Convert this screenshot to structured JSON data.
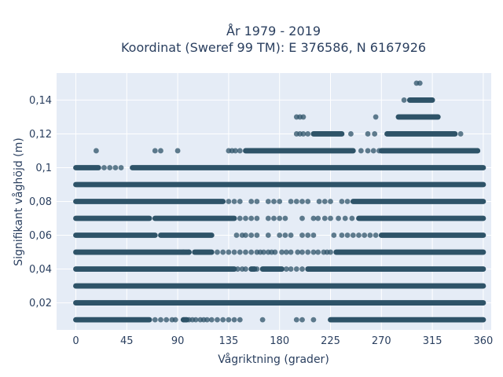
{
  "chart_data": {
    "type": "scatter",
    "title_line1": "År 1979 - 2019",
    "title_line2": "Koordinat (Sweref 99 TM): E 376586, N 6167926",
    "xlabel": "Vågriktning (grader)",
    "ylabel": "Signifikant våghöjd (m)",
    "xlim": [
      -17,
      367
    ],
    "ylim": [
      0.004,
      0.156
    ],
    "x_ticks": [
      {
        "value": 0,
        "label": "0"
      },
      {
        "value": 45,
        "label": "45"
      },
      {
        "value": 90,
        "label": "90"
      },
      {
        "value": 135,
        "label": "135"
      },
      {
        "value": 180,
        "label": "180"
      },
      {
        "value": 225,
        "label": "225"
      },
      {
        "value": 270,
        "label": "270"
      },
      {
        "value": 315,
        "label": "315"
      },
      {
        "value": 360,
        "label": "360"
      }
    ],
    "y_ticks": [
      {
        "value": 0.02,
        "label": "0,02"
      },
      {
        "value": 0.04,
        "label": "0,04"
      },
      {
        "value": 0.06,
        "label": "0,06"
      },
      {
        "value": 0.08,
        "label": "0,08"
      },
      {
        "value": 0.1,
        "label": "0,1"
      },
      {
        "value": 0.12,
        "label": "0,12"
      },
      {
        "value": 0.14,
        "label": "0,14"
      }
    ],
    "grid": true,
    "marker_color": "#2e5368",
    "plot_bg": "#e5ecf6",
    "rows": [
      {
        "y": 0.01,
        "segments": [
          [
            0,
            65
          ],
          [
            95,
            98
          ],
          [
            225,
            360
          ]
        ],
        "points": [
          70,
          75,
          80,
          85,
          88,
          100,
          103,
          106,
          110,
          113,
          116,
          120,
          125,
          130,
          135,
          140,
          145,
          165,
          195,
          200,
          210
        ]
      },
      {
        "y": 0.02,
        "segments": [
          [
            0,
            360
          ]
        ],
        "points": []
      },
      {
        "y": 0.03,
        "segments": [
          [
            0,
            360
          ]
        ],
        "points": []
      },
      {
        "y": 0.04,
        "segments": [
          [
            0,
            140
          ],
          [
            155,
            158
          ],
          [
            165,
            182
          ],
          [
            205,
            360
          ]
        ],
        "points": [
          143,
          147,
          150,
          160,
          186,
          190,
          195,
          200
        ]
      },
      {
        "y": 0.05,
        "segments": [
          [
            0,
            100
          ],
          [
            105,
            120
          ],
          [
            230,
            360
          ]
        ],
        "points": [
          95,
          100,
          125,
          130,
          135,
          140,
          145,
          150,
          155,
          160,
          163,
          166,
          170,
          173,
          176,
          182,
          186,
          190,
          196,
          200,
          205,
          210,
          214,
          219,
          222,
          225
        ]
      },
      {
        "y": 0.06,
        "segments": [
          [
            0,
            70
          ],
          [
            75,
            120
          ],
          [
            270,
            360
          ]
        ],
        "points": [
          142,
          147,
          150,
          155,
          160,
          170,
          180,
          185,
          190,
          200,
          205,
          210,
          228,
          235,
          240,
          245,
          250,
          255,
          260,
          265
        ]
      },
      {
        "y": 0.07,
        "segments": [
          [
            0,
            65
          ],
          [
            70,
            140
          ],
          [
            250,
            360
          ]
        ],
        "points": [
          145,
          150,
          155,
          160,
          170,
          175,
          180,
          185,
          200,
          210,
          214,
          220,
          225,
          232,
          238,
          244
        ]
      },
      {
        "y": 0.08,
        "segments": [
          [
            0,
            130
          ],
          [
            245,
            360
          ]
        ],
        "points": [
          135,
          140,
          145,
          155,
          160,
          170,
          175,
          180,
          190,
          195,
          200,
          205,
          215,
          220,
          225,
          235,
          240
        ]
      },
      {
        "y": 0.09,
        "segments": [
          [
            0,
            360
          ]
        ],
        "points": []
      },
      {
        "y": 0.1,
        "segments": [
          [
            0,
            20
          ],
          [
            50,
            360
          ]
        ],
        "points": [
          25,
          30,
          35,
          40
        ]
      },
      {
        "y": 0.11,
        "segments": [
          [
            150,
            245
          ],
          [
            270,
            355
          ]
        ],
        "points": [
          18,
          70,
          75,
          90,
          135,
          138,
          141,
          145,
          252,
          258,
          263,
          268
        ]
      },
      {
        "y": 0.12,
        "segments": [
          [
            210,
            235
          ],
          [
            275,
            335
          ]
        ],
        "points": [
          195,
          198,
          201,
          205,
          243,
          258,
          264,
          340
        ]
      },
      {
        "y": 0.13,
        "segments": [
          [
            285,
            320
          ]
        ],
        "points": [
          195,
          198,
          201,
          265
        ]
      },
      {
        "y": 0.14,
        "segments": [
          [
            295,
            315
          ]
        ],
        "points": [
          290
        ]
      },
      {
        "y": 0.15,
        "segments": [],
        "points": [
          301,
          304
        ]
      }
    ]
  }
}
